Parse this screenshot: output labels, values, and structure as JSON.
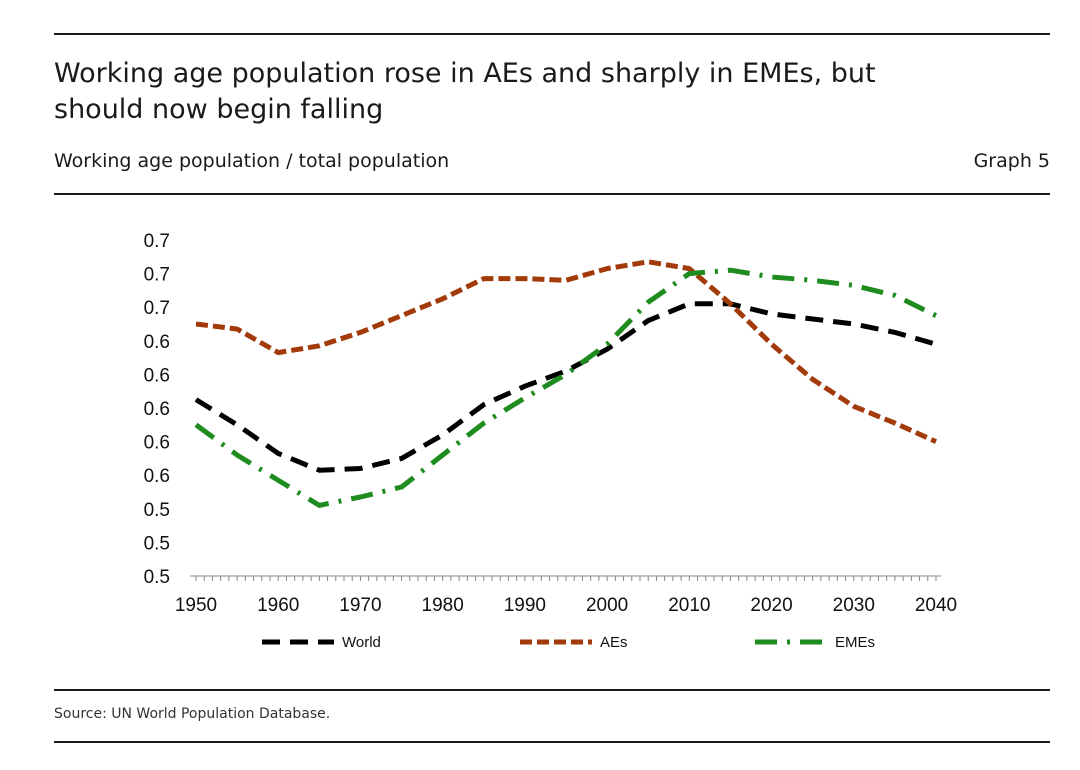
{
  "header": {
    "title": "Working age population rose in AEs and sharply in EMEs, but should now begin falling",
    "subtitle": "Working age population / total population",
    "graph_label": "Graph 5"
  },
  "footer": {
    "source": "Source: UN World Population Database."
  },
  "colors": {
    "World": "#000000",
    "AEs": "#a33a0a",
    "EMEs": "#1f8c1f"
  },
  "chart_data": {
    "type": "line",
    "title": "Working age population rose in AEs and sharply in EMEs, but should now begin falling",
    "ylabel": "Working age population / total population",
    "xlabel": "",
    "xlim": [
      1950,
      2040
    ],
    "ylim": [
      0.5,
      0.7
    ],
    "x_ticks": [
      "1950",
      "1960",
      "1970",
      "1980",
      "1990",
      "2000",
      "2010",
      "2020",
      "2030",
      "2040"
    ],
    "y_ticks": [
      "0.5",
      "0.5",
      "0.5",
      "0.6",
      "0.6",
      "0.6",
      "0.6",
      "0.6",
      "0.7",
      "0.7",
      "0.7"
    ],
    "grid": false,
    "legend_position": "bottom",
    "series": [
      {
        "name": "World",
        "style": "dashed",
        "x": [
          1950,
          1955,
          1960,
          1965,
          1970,
          1975,
          1980,
          1985,
          1990,
          1995,
          2000,
          2005,
          2010,
          2015,
          2020,
          2025,
          2030,
          2035,
          2040
        ],
        "y": [
          0.605,
          0.59,
          0.573,
          0.563,
          0.564,
          0.57,
          0.584,
          0.602,
          0.613,
          0.622,
          0.635,
          0.652,
          0.662,
          0.662,
          0.656,
          0.653,
          0.65,
          0.645,
          0.638
        ]
      },
      {
        "name": "AEs",
        "style": "short-dashed",
        "x": [
          1950,
          1955,
          1960,
          1965,
          1970,
          1975,
          1980,
          1985,
          1990,
          1995,
          2000,
          2005,
          2010,
          2015,
          2020,
          2025,
          2030,
          2035,
          2040
        ],
        "y": [
          0.65,
          0.647,
          0.633,
          0.637,
          0.645,
          0.655,
          0.665,
          0.677,
          0.677,
          0.676,
          0.683,
          0.687,
          0.683,
          0.662,
          0.638,
          0.617,
          0.601,
          0.591,
          0.58
        ]
      },
      {
        "name": "EMEs",
        "style": "dash-dot",
        "x": [
          1950,
          1955,
          1960,
          1965,
          1970,
          1975,
          1980,
          1985,
          1990,
          1995,
          2000,
          2005,
          2010,
          2015,
          2020,
          2025,
          2030,
          2035,
          2040
        ],
        "y": [
          0.59,
          0.572,
          0.557,
          0.542,
          0.547,
          0.553,
          0.572,
          0.591,
          0.606,
          0.62,
          0.638,
          0.663,
          0.68,
          0.682,
          0.678,
          0.676,
          0.673,
          0.667,
          0.655
        ]
      }
    ]
  }
}
